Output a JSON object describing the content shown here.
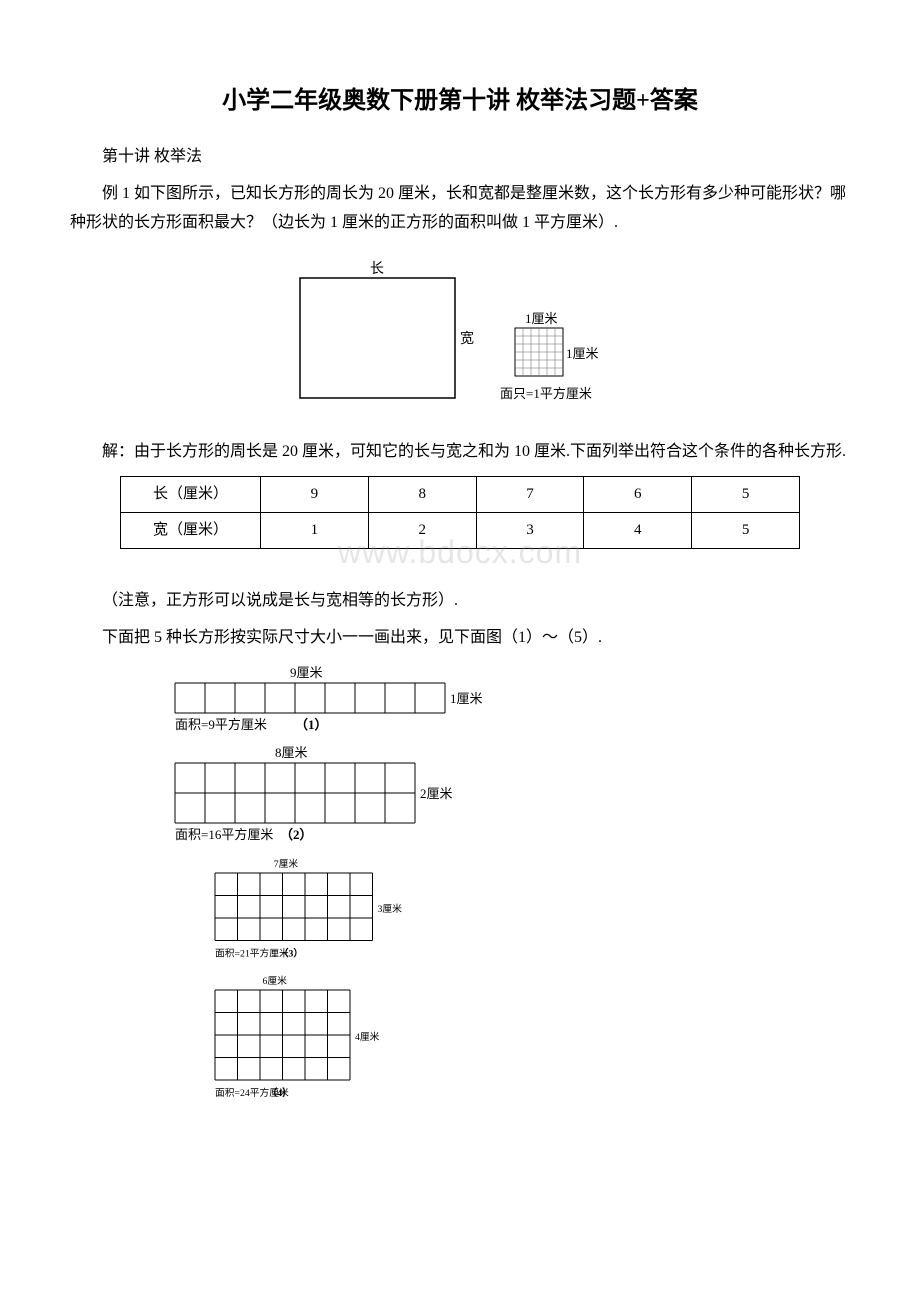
{
  "title": "小学二年级奥数下册第十讲 枚举法习题+答案",
  "subtitle": "第十讲 枚举法",
  "example1_text": "例 1 如下图所示，已知长方形的周长为 20 厘米，长和宽都是整厘米数，这个长方形有多少种可能形状？哪种形状的长方形面积最大？（边长为 1 厘米的正方形的面积叫做 1 平方厘米）.",
  "figure1": {
    "label_top": "长",
    "label_right": "宽",
    "square_top": "1厘米",
    "square_right": "1厘米",
    "square_bottom": "面只=1平方厘米"
  },
  "solution_text": "解：由于长方形的周长是 20 厘米，可知它的长与宽之和为 10 厘米.下面列举出符合这个条件的各种长方形.",
  "table": {
    "row1_label": "长（厘米）",
    "row2_label": "宽（厘米）",
    "row1": [
      "9",
      "8",
      "7",
      "6",
      "5"
    ],
    "row2": [
      "1",
      "2",
      "3",
      "4",
      "5"
    ]
  },
  "watermark": "www.bdocx.com",
  "note1": "（注意，正方形可以说成是长与宽相等的长方形）.",
  "note2": "下面把 5 种长方形按实际尺寸大小一一画出来，见下面图（1）～（5）.",
  "rects": [
    {
      "width": 9,
      "height": 1,
      "width_label": "9厘米",
      "height_label": "1厘米",
      "area_label": "面积=9平方厘米",
      "num": "（1）"
    },
    {
      "width": 8,
      "height": 2,
      "width_label": "8厘米",
      "height_label": "2厘米",
      "area_label": "面积=16平方厘米",
      "num": "（2）"
    },
    {
      "width": 7,
      "height": 3,
      "width_label": "7厘米",
      "height_label": "3厘米",
      "area_label": "面积=21平方厘米",
      "num": "（3）"
    },
    {
      "width": 6,
      "height": 4,
      "width_label": "6厘米",
      "height_label": "4厘米",
      "area_label": "面积=24平方厘米",
      "num": "（4）"
    }
  ],
  "cell_size": 30
}
